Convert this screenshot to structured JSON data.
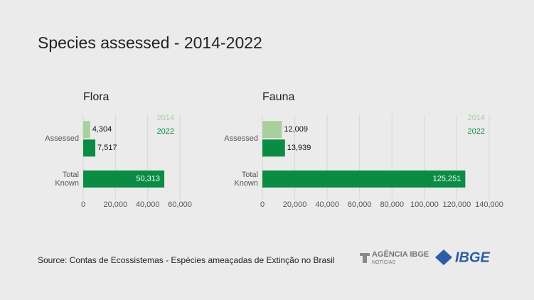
{
  "title": "Species assessed - 2014-2022",
  "chart_data": [
    {
      "type": "bar",
      "orientation": "horizontal",
      "title": "Flora",
      "categories": [
        "Assessed",
        "Total Known"
      ],
      "series": [
        {
          "name": "2014",
          "color": "#a8cf9e",
          "values": [
            4304,
            null
          ],
          "value_labels": [
            "4,304",
            null
          ]
        },
        {
          "name": "2022",
          "color": "#0b8c45",
          "values": [
            7517,
            50313
          ],
          "value_labels": [
            "7,517",
            "50,313"
          ]
        }
      ],
      "xlim": [
        0,
        60000
      ],
      "xticks": [
        0,
        {
          "value": 20000,
          "label": "20,000"
        },
        {
          "value": 40000,
          "label": "40,000"
        },
        {
          "value": 60000,
          "label": "60,000"
        }
      ],
      "grid": true,
      "legend": "top-right"
    },
    {
      "type": "bar",
      "orientation": "horizontal",
      "title": "Fauna",
      "categories": [
        "Assessed",
        "Total Known"
      ],
      "series": [
        {
          "name": "2014",
          "color": "#a8cf9e",
          "values": [
            12009,
            null
          ],
          "value_labels": [
            "12,009",
            null
          ]
        },
        {
          "name": "2022",
          "color": "#0b8c45",
          "values": [
            13939,
            125251
          ],
          "value_labels": [
            "13,939",
            "125,251"
          ]
        }
      ],
      "xlim": [
        0,
        140000
      ],
      "xticks": [
        0,
        {
          "value": 20000,
          "label": "20,000"
        },
        {
          "value": 40000,
          "label": "40,000"
        },
        {
          "value": 60000,
          "label": "60,000"
        },
        {
          "value": 80000,
          "label": "80,000"
        },
        {
          "value": 100000,
          "label": "100,000"
        },
        {
          "value": 120000,
          "label": "120,000"
        },
        {
          "value": 140000,
          "label": "140,000"
        }
      ],
      "grid": true,
      "legend": "top-right"
    }
  ],
  "source": "Source: Contas de Ecossistemas - Espécies ameaçadas de Extinção no Brasil",
  "logo": {
    "agency": "AGÊNCIA IBGE",
    "agency_sub": "NOTÍCIAS",
    "brand": "IBGE"
  }
}
